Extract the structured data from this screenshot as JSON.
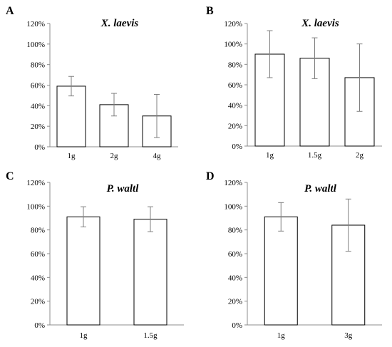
{
  "chart_data": [
    {
      "panel_label": "A",
      "type": "bar",
      "title": "X. laevis",
      "categories": [
        "1g",
        "2g",
        "4g"
      ],
      "values": [
        59,
        41,
        30
      ],
      "error": [
        9.5,
        11,
        21
      ],
      "ylim": [
        0,
        120
      ],
      "yticks": [
        "0%",
        "20%",
        "40%",
        "60%",
        "80%",
        "100%",
        "120%"
      ],
      "grid": false
    },
    {
      "panel_label": "B",
      "type": "bar",
      "title": "X. laevis",
      "categories": [
        "1g",
        "1.5g",
        "2g"
      ],
      "values": [
        90,
        86,
        67
      ],
      "error": [
        23,
        20,
        33
      ],
      "ylim": [
        0,
        120
      ],
      "yticks": [
        "0%",
        "20%",
        "40%",
        "60%",
        "80%",
        "100%",
        "120%"
      ],
      "grid": false
    },
    {
      "panel_label": "C",
      "type": "bar",
      "title": "P. waltl",
      "categories": [
        "1g",
        "1.5g"
      ],
      "values": [
        91,
        89
      ],
      "error": [
        8.5,
        10.5
      ],
      "ylim": [
        0,
        120
      ],
      "yticks": [
        "0%",
        "20%",
        "40%",
        "60%",
        "80%",
        "100%",
        "120%"
      ],
      "grid": false
    },
    {
      "panel_label": "D",
      "type": "bar",
      "title": "P. waltl",
      "categories": [
        "1g",
        "3g"
      ],
      "values": [
        91,
        84
      ],
      "error": [
        12,
        22
      ],
      "ylim": [
        0,
        120
      ],
      "yticks": [
        "0%",
        "20%",
        "40%",
        "60%",
        "80%",
        "100%",
        "120%"
      ],
      "grid": false
    }
  ],
  "colors": {
    "bar_fill": "#ffffff",
    "bar_stroke": "#000000",
    "axis": "#8c8c8c",
    "error_bar": "#7f7f7f"
  }
}
